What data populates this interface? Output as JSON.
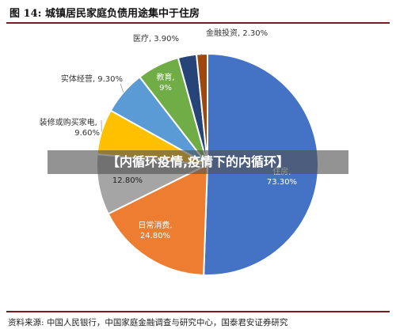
{
  "figure": {
    "title": "图 14:  城镇居民家庭负债用途集中于住房",
    "source": "资料来源:  中国人民银行，中国家庭金融调查与研究中心，国泰君安证券研究"
  },
  "watermark": {
    "text": "【内循环疫情,疫情下的内循环】"
  },
  "chart_data": {
    "type": "pie",
    "title": "",
    "slices": [
      {
        "name": "住房",
        "label": "住房, 73.30%",
        "value": 73.3,
        "color": "#4472C4"
      },
      {
        "name": "日常消费",
        "label": "日常消费, 24.80%",
        "value": 24.8,
        "color": "#ED7D31"
      },
      {
        "name": "",
        "label": "12.80%",
        "value": 12.8,
        "color": "#A5A5A5"
      },
      {
        "name": "装修或购买家电",
        "label": "装修或购买家电, 9.60%",
        "value": 9.6,
        "color": "#FFC000"
      },
      {
        "name": "实体经营",
        "label": "实体经营, 9.30%",
        "value": 9.3,
        "color": "#5B9BD5"
      },
      {
        "name": "教育",
        "label": "教育, 9%",
        "value": 9.0,
        "color": "#70AD47"
      },
      {
        "name": "医疗",
        "label": "医疗, 3.90%",
        "value": 3.9,
        "color": "#264478"
      },
      {
        "name": "金融投资",
        "label": "金融投资, 2.30%",
        "value": 2.3,
        "color": "#9E480E"
      }
    ]
  }
}
